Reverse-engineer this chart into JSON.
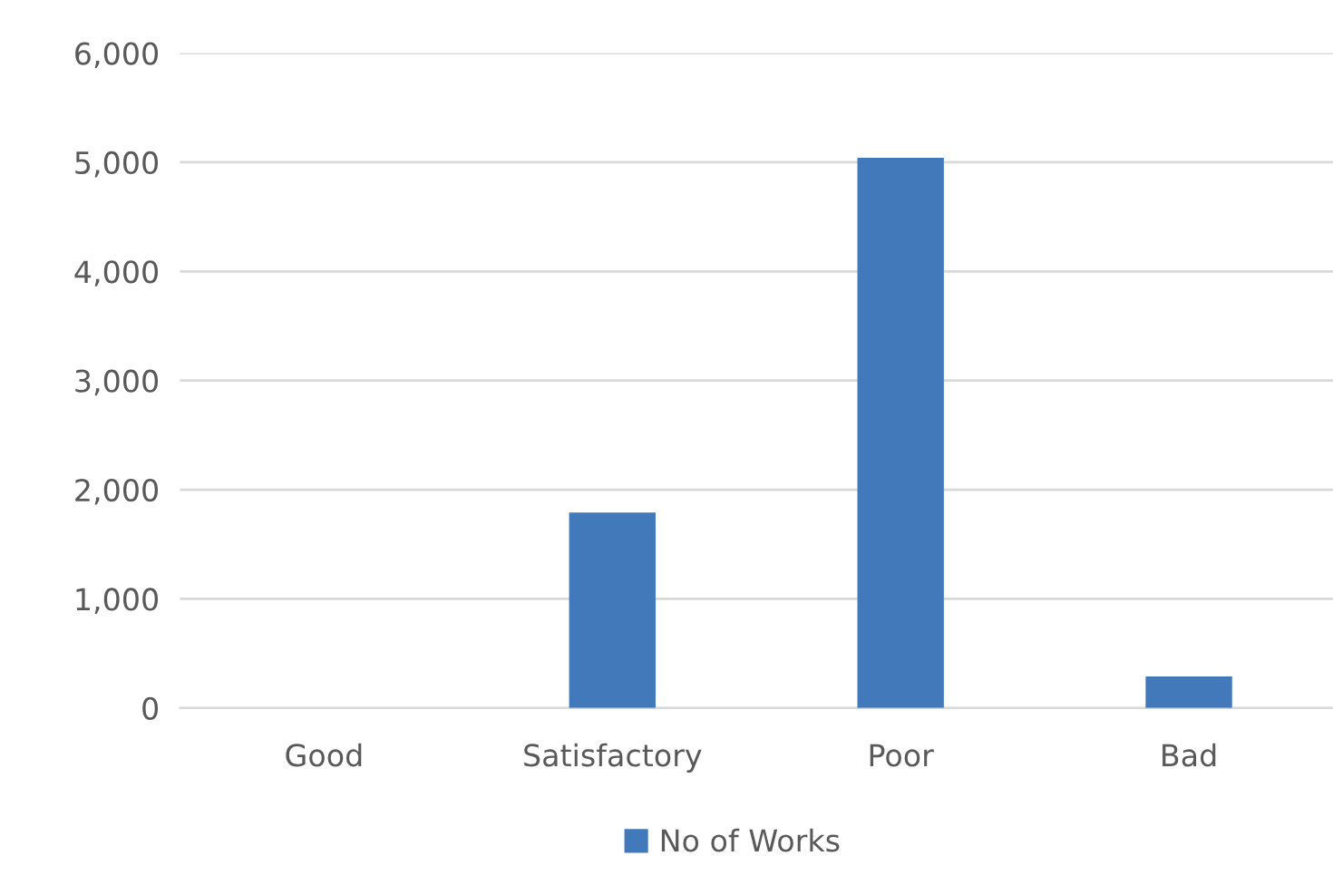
{
  "chart_data": {
    "type": "bar",
    "categories": [
      "Good",
      "Satisfactory",
      "Poor",
      "Bad"
    ],
    "series": [
      {
        "name": "No of Works",
        "color": "#4279bb",
        "values": [
          0,
          1790,
          5040,
          290
        ]
      }
    ],
    "ylim": [
      0,
      6000
    ],
    "yticks": [
      {
        "value": 0,
        "label": "0"
      },
      {
        "value": 1000,
        "label": "1,000"
      },
      {
        "value": 2000,
        "label": "2,000"
      },
      {
        "value": 3000,
        "label": "3,000"
      },
      {
        "value": 4000,
        "label": "4,000"
      },
      {
        "value": 5000,
        "label": "5,000"
      },
      {
        "value": 6000,
        "label": "6,000"
      }
    ],
    "grid": "y",
    "legend": "bottom"
  }
}
